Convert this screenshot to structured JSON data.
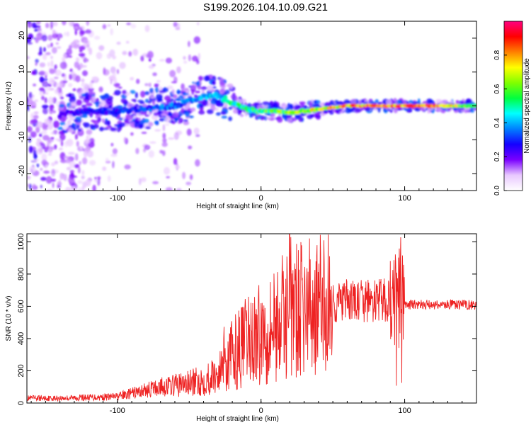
{
  "page": {
    "title": "S199.2026.104.10.09.G21"
  },
  "chart_data": [
    {
      "type": "heatmap",
      "title": "S199.2026.104.10.09.G21",
      "xlabel": "Height of straight line (km)",
      "ylabel": "Frequency (Hz)",
      "xlim": [
        -163,
        150
      ],
      "ylim": [
        -25,
        25
      ],
      "xticks": [
        -100,
        0,
        100
      ],
      "yticks": [
        -20,
        -10,
        0,
        10,
        20
      ],
      "colorbar": {
        "label": "Normalized spectral amplitude",
        "range": [
          0,
          1
        ],
        "ticks": [
          0.0,
          0.2,
          0.4,
          0.6,
          0.8
        ],
        "colormap": [
          "#ffffff",
          "#e9c8ff",
          "#7a00ff",
          "#1400ff",
          "#0080ff",
          "#00ffff",
          "#00ff40",
          "#80ff00",
          "#ffff00",
          "#ff8000",
          "#ff0000",
          "#ff0080"
        ]
      },
      "ridge": {
        "x": [
          -163,
          -140,
          -120,
          -100,
          -80,
          -60,
          -40,
          -30,
          -20,
          -10,
          0,
          10,
          20,
          30,
          40,
          50,
          60,
          70,
          80,
          90,
          100,
          120,
          150
        ],
        "y": [
          -2.5,
          -2.5,
          -1.5,
          -1.5,
          -1,
          0,
          3,
          3,
          1,
          -1,
          -1.5,
          -1.5,
          -2,
          -1.5,
          -1,
          -0.5,
          0,
          0,
          0,
          0,
          0,
          0,
          0
        ],
        "amplitude": [
          0.2,
          0.25,
          0.3,
          0.32,
          0.35,
          0.4,
          0.45,
          0.5,
          0.55,
          0.6,
          0.62,
          0.65,
          0.7,
          0.72,
          0.78,
          0.82,
          0.9,
          0.95,
          0.95,
          0.9,
          0.97,
          0.95,
          0.6
        ]
      }
    },
    {
      "type": "line",
      "xlabel": "Height of straight line (km)",
      "ylabel": "SNR (10 * v/v)",
      "xlim": [
        -163,
        150
      ],
      "ylim": [
        0,
        1050
      ],
      "xticks": [
        -100,
        0,
        100
      ],
      "yticks": [
        0,
        200,
        400,
        600,
        800,
        1000
      ],
      "series": [
        {
          "name": "SNR",
          "color": "#ee2222",
          "x": [
            -163,
            -140,
            -120,
            -100,
            -90,
            -80,
            -70,
            -60,
            -50,
            -40,
            -30,
            -25,
            -20,
            -10,
            0,
            10,
            20,
            30,
            40,
            50,
            60,
            70,
            80,
            90,
            95,
            100,
            110,
            120,
            130,
            140,
            150
          ],
          "y": [
            30,
            30,
            35,
            40,
            60,
            80,
            100,
            110,
            120,
            140,
            180,
            230,
            300,
            380,
            430,
            500,
            550,
            580,
            600,
            620,
            630,
            630,
            630,
            640,
            600,
            610,
            610,
            610,
            610,
            610,
            610
          ]
        }
      ]
    }
  ]
}
